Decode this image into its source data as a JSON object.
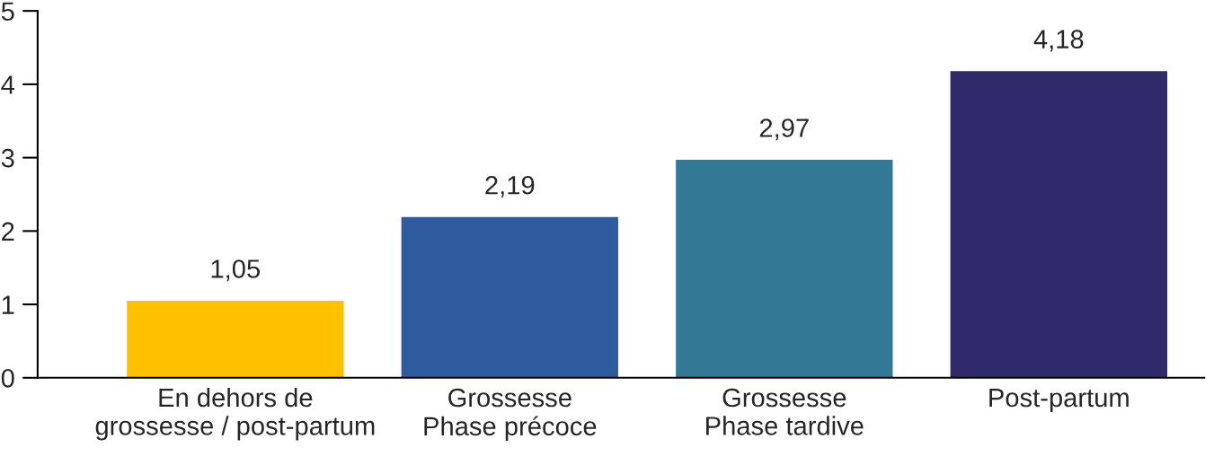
{
  "chart_data": {
    "type": "bar",
    "categories": [
      "En dehors de\ngrossesse / post-partum",
      "Grossesse\nPhase précoce",
      "Grossesse\nPhase tardive",
      "Post-partum"
    ],
    "values": [
      1.05,
      2.19,
      2.97,
      4.18
    ],
    "colors": [
      "#ffc000",
      "#2e5c9e",
      "#337996",
      "#2f2a6a"
    ],
    "value_labels": [
      "1,05",
      "2,19",
      "2,97",
      "4,18"
    ],
    "ylim": [
      0,
      5
    ],
    "yticks": [
      0,
      1,
      2,
      3,
      4,
      5
    ],
    "grid": false
  }
}
